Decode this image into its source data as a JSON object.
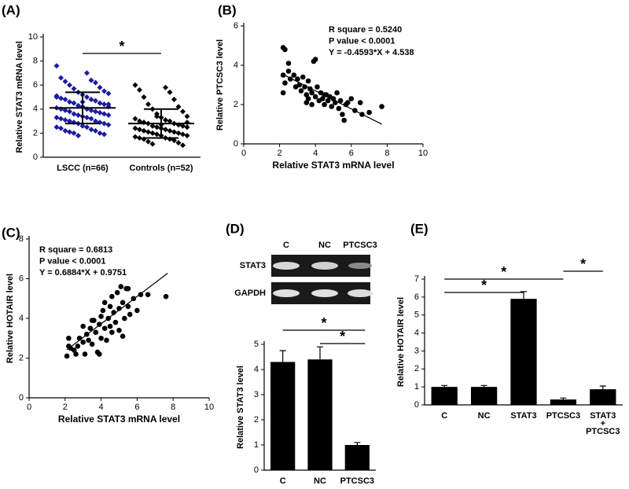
{
  "chart_data": [
    {
      "panel": "(A)",
      "type": "dotplot",
      "categories": [
        "LSCC (n=66)",
        "Controls (n=52)"
      ],
      "groups": [
        {
          "color": "#1c1ca0",
          "values": [
            7.6,
            7.0,
            6.6,
            6.4,
            6.3,
            6.2,
            6.0,
            5.8,
            5.7,
            5.5,
            5.4,
            5.3,
            5.2,
            5.1,
            5.0,
            4.9,
            4.8,
            4.8,
            4.7,
            4.6,
            4.5,
            4.5,
            4.4,
            4.3,
            4.2,
            4.2,
            4.1,
            4.0,
            4.0,
            3.9,
            3.9,
            3.8,
            3.8,
            3.7,
            3.6,
            3.6,
            3.5,
            3.5,
            3.4,
            3.3,
            3.3,
            3.2,
            3.2,
            3.1,
            3.0,
            3.0,
            2.9,
            2.9,
            2.8,
            2.8,
            2.7,
            2.6,
            2.5,
            2.5,
            2.4,
            2.3,
            2.2,
            2.2,
            2.1,
            2.0,
            2.0,
            1.9,
            1.8,
            4.4,
            4.6,
            5.0
          ]
        },
        {
          "color": "#000000",
          "values": [
            6.0,
            5.8,
            5.6,
            5.4,
            5.0,
            4.8,
            4.4,
            4.2,
            4.0,
            3.8,
            3.6,
            3.4,
            3.3,
            3.2,
            3.1,
            3.0,
            3.0,
            2.9,
            2.8,
            2.8,
            2.7,
            2.6,
            2.6,
            2.5,
            2.5,
            2.4,
            2.4,
            2.3,
            2.3,
            2.2,
            2.2,
            2.1,
            2.1,
            2.0,
            2.0,
            1.9,
            1.9,
            1.8,
            1.8,
            1.7,
            1.6,
            1.6,
            1.5,
            1.5,
            1.4,
            1.3,
            1.2,
            1.1,
            1.0,
            3.4,
            2.9,
            2.7
          ]
        }
      ],
      "mean": [
        4.1,
        2.8
      ],
      "sd": [
        1.3,
        1.2
      ],
      "ylim": [
        0,
        10
      ],
      "yticks": [
        0,
        2,
        4,
        6,
        8,
        10
      ],
      "ylabel": "Relative STAT3 mRNA level",
      "significance": [
        {
          "from": 0,
          "to": 1,
          "label": "*"
        }
      ]
    },
    {
      "panel": "(B)",
      "type": "scatter",
      "color": "#000000",
      "x": [
        2.2,
        2.3,
        2.2,
        2.3,
        2.2,
        2.5,
        2.5,
        2.6,
        2.8,
        3.0,
        3.1,
        3.2,
        3.3,
        3.4,
        3.5,
        3.6,
        3.6,
        3.7,
        3.8,
        3.9,
        4.0,
        4.0,
        4.1,
        4.2,
        4.3,
        4.4,
        4.5,
        4.6,
        4.7,
        4.8,
        4.9,
        5.0,
        5.1,
        5.2,
        5.3,
        5.4,
        5.5,
        5.6,
        5.7,
        5.8,
        6.0,
        6.2,
        6.5,
        6.6,
        7.0,
        7.7,
        3.5,
        4.5,
        2.9,
        3.8
      ],
      "values": [
        4.9,
        4.8,
        3.5,
        3.1,
        2.6,
        4.1,
        3.7,
        3.3,
        3.5,
        3.3,
        3.0,
        2.7,
        3.4,
        2.9,
        2.5,
        3.2,
        2.3,
        2.8,
        2.6,
        4.2,
        4.3,
        2.4,
        2.9,
        2.2,
        2.6,
        2.3,
        2.0,
        2.5,
        2.2,
        2.4,
        1.9,
        2.3,
        2.1,
        2.6,
        1.8,
        2.2,
        1.5,
        1.2,
        2.0,
        2.1,
        2.3,
        1.7,
        2.1,
        1.5,
        1.6,
        1.9,
        2.1,
        2.5,
        2.9,
        2.0
      ],
      "xlim": [
        0,
        10
      ],
      "xticks": [
        0,
        2,
        4,
        6,
        8,
        10
      ],
      "ylim": [
        0,
        6
      ],
      "yticks": [
        0,
        2,
        4,
        6
      ],
      "xlabel": "Relative STAT3 mRNA level",
      "ylabel": "Relative PTCSC3 level",
      "annotations": [
        "R square = 0.5240",
        "P value < 0.0001",
        "Y = -0.4593*X + 4.538"
      ],
      "fit": {
        "slope": -0.4593,
        "intercept": 4.538,
        "xrange": [
          2.2,
          7.7
        ]
      }
    },
    {
      "panel": "(C)",
      "type": "scatter",
      "color": "#000000",
      "x": [
        2.1,
        2.2,
        2.2,
        2.3,
        2.5,
        2.7,
        2.8,
        3.0,
        3.0,
        3.1,
        3.2,
        3.3,
        3.4,
        3.5,
        3.6,
        3.7,
        3.8,
        3.9,
        4.0,
        4.0,
        4.1,
        4.2,
        4.3,
        4.4,
        4.5,
        4.5,
        4.6,
        4.7,
        4.8,
        4.9,
        5.0,
        5.0,
        5.1,
        5.2,
        5.3,
        5.4,
        5.5,
        5.6,
        5.8,
        6.0,
        6.2,
        6.6,
        7.6,
        3.5,
        4.2,
        5.5,
        3.9,
        4.6,
        5.2,
        2.6
      ],
      "values": [
        2.1,
        2.6,
        3.0,
        2.5,
        2.4,
        2.6,
        3.0,
        2.8,
        3.6,
        2.2,
        3.2,
        2.9,
        3.5,
        2.7,
        3.9,
        3.3,
        2.3,
        3.7,
        4.1,
        3.0,
        4.4,
        3.5,
        2.9,
        4.0,
        4.6,
        3.6,
        5.1,
        4.3,
        3.8,
        5.3,
        4.5,
        3.4,
        5.6,
        4.8,
        4.0,
        5.5,
        4.6,
        4.2,
        5.0,
        4.4,
        5.2,
        5.2,
        5.1,
        3.9,
        4.8,
        5.5,
        2.2,
        3.3,
        3.1,
        2.2
      ],
      "xlim": [
        0,
        10
      ],
      "xticks": [
        0,
        2,
        4,
        6,
        8,
        10
      ],
      "ylim": [
        0,
        8
      ],
      "yticks": [
        0,
        2,
        4,
        6,
        8
      ],
      "xlabel": "Relative STAT3 mRNA level",
      "ylabel": "Relative HOTAIR level",
      "annotations": [
        "R square = 0.6813",
        "P value < 0.0001",
        "Y = 0.6884*X + 0.9751"
      ],
      "fit": {
        "slope": 0.6884,
        "intercept": 0.9751,
        "xrange": [
          2.1,
          7.7
        ]
      }
    },
    {
      "panel": "(D)",
      "type": "bar",
      "color": "#000000",
      "gel": {
        "lanes": [
          "C",
          "NC",
          "PTCSC3"
        ],
        "rows": [
          "STAT3",
          "GAPDH"
        ]
      },
      "categories": [
        "C",
        "NC",
        "PTCSC3"
      ],
      "values": [
        4.3,
        4.4,
        1.0
      ],
      "errors": [
        0.45,
        0.5,
        0.1
      ],
      "ylim": [
        0,
        5
      ],
      "yticks": [
        0,
        1,
        2,
        3,
        4,
        5
      ],
      "ylabel": "Relative STAT3 level",
      "significance": [
        {
          "from": 0,
          "to": 2,
          "label": "*"
        },
        {
          "from": 1,
          "to": 2,
          "label": "*"
        }
      ]
    },
    {
      "panel": "(E)",
      "type": "bar",
      "color": "#000000",
      "categories": [
        "C",
        "NC",
        "STAT3",
        "PTCSC3",
        "STAT3\n+\nPTCSC3"
      ],
      "values": [
        1.0,
        1.0,
        5.9,
        0.3,
        0.87
      ],
      "errors": [
        0.08,
        0.08,
        0.4,
        0.08,
        0.18
      ],
      "ylim": [
        0,
        7
      ],
      "yticks": [
        0,
        1,
        2,
        3,
        4,
        5,
        6,
        7
      ],
      "ylabel": "Relative HOTAIR level",
      "significance": [
        {
          "from": 0,
          "to": 2,
          "label": "*"
        },
        {
          "from": 0,
          "to": 3,
          "label": "*"
        },
        {
          "from": 3,
          "to": 4,
          "label": "*"
        }
      ]
    }
  ]
}
